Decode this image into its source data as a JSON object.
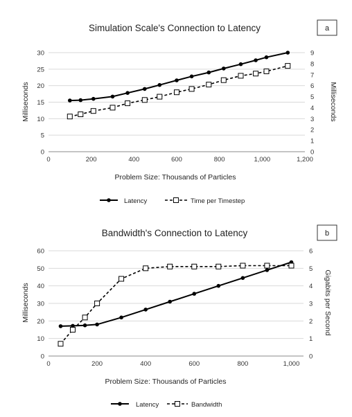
{
  "chart_data": [
    {
      "type": "line",
      "panel_label": "a",
      "title": "Simulation Scale's Connection to Latency",
      "xlabel": "Problem Size: Thousands of Particles",
      "ylabel": "Milliseconds",
      "y2label": "Milliseconds",
      "xlim": [
        0,
        1200
      ],
      "ylim": [
        0,
        30
      ],
      "y2lim": [
        0,
        9
      ],
      "xticks": [
        "0",
        "200",
        "400",
        "600",
        "800",
        "1,000",
        "1,200"
      ],
      "yticks": [
        "0",
        "5",
        "10",
        "15",
        "20",
        "25",
        "30"
      ],
      "y2ticks": [
        "0",
        "1",
        "2",
        "3",
        "4",
        "5",
        "6",
        "7",
        "8",
        "9"
      ],
      "grid": "horizontal",
      "legend_position": "bottom",
      "series": [
        {
          "name": "Latency",
          "axis": "left",
          "style": "solid",
          "marker": "filled-circle",
          "x": [
            100,
            150,
            210,
            300,
            370,
            450,
            520,
            600,
            670,
            750,
            820,
            900,
            970,
            1020,
            1120
          ],
          "y": [
            15.5,
            15.6,
            16.0,
            16.7,
            17.8,
            19.0,
            20.2,
            21.6,
            22.8,
            24.0,
            25.2,
            26.5,
            27.7,
            28.6,
            30.0
          ]
        },
        {
          "name": "Time per Timestep",
          "axis": "right",
          "style": "dashed",
          "marker": "open-square",
          "x": [
            100,
            150,
            210,
            300,
            370,
            450,
            520,
            600,
            670,
            750,
            820,
            900,
            970,
            1020,
            1120
          ],
          "y": [
            3.2,
            3.4,
            3.7,
            4.0,
            4.4,
            4.7,
            5.0,
            5.4,
            5.7,
            6.1,
            6.5,
            6.9,
            7.1,
            7.3,
            7.8
          ]
        }
      ]
    },
    {
      "type": "line",
      "panel_label": "b",
      "title": "Bandwidth's Connection to Latency",
      "xlabel": "Problem Size: Thousands of Particles",
      "ylabel": "Milliseconds",
      "y2label": "Gigabits per Second",
      "xlim": [
        0,
        1050
      ],
      "ylim": [
        0,
        60
      ],
      "y2lim": [
        0,
        6
      ],
      "xticks": [
        "0",
        "200",
        "400",
        "600",
        "800",
        "1,000"
      ],
      "yticks": [
        "0",
        "10",
        "20",
        "30",
        "40",
        "50",
        "60"
      ],
      "y2ticks": [
        "0",
        "1",
        "2",
        "3",
        "4",
        "5",
        "6"
      ],
      "grid": "horizontal",
      "legend_position": "bottom",
      "series": [
        {
          "name": "Latency",
          "axis": "left",
          "style": "solid",
          "marker": "filled-circle",
          "x": [
            50,
            100,
            150,
            200,
            300,
            400,
            500,
            600,
            700,
            800,
            900,
            1000
          ],
          "y": [
            17.0,
            17.2,
            17.5,
            18.0,
            22.0,
            26.5,
            31.0,
            35.5,
            40.0,
            44.5,
            49.0,
            53.5
          ]
        },
        {
          "name": "Bandwidth",
          "axis": "right",
          "style": "dashed",
          "marker": "open-square",
          "x": [
            50,
            100,
            150,
            200,
            300,
            400,
            500,
            600,
            700,
            800,
            900,
            1000
          ],
          "y": [
            0.7,
            1.5,
            2.2,
            3.0,
            4.4,
            5.0,
            5.1,
            5.1,
            5.1,
            5.15,
            5.15,
            5.15
          ]
        }
      ]
    }
  ]
}
